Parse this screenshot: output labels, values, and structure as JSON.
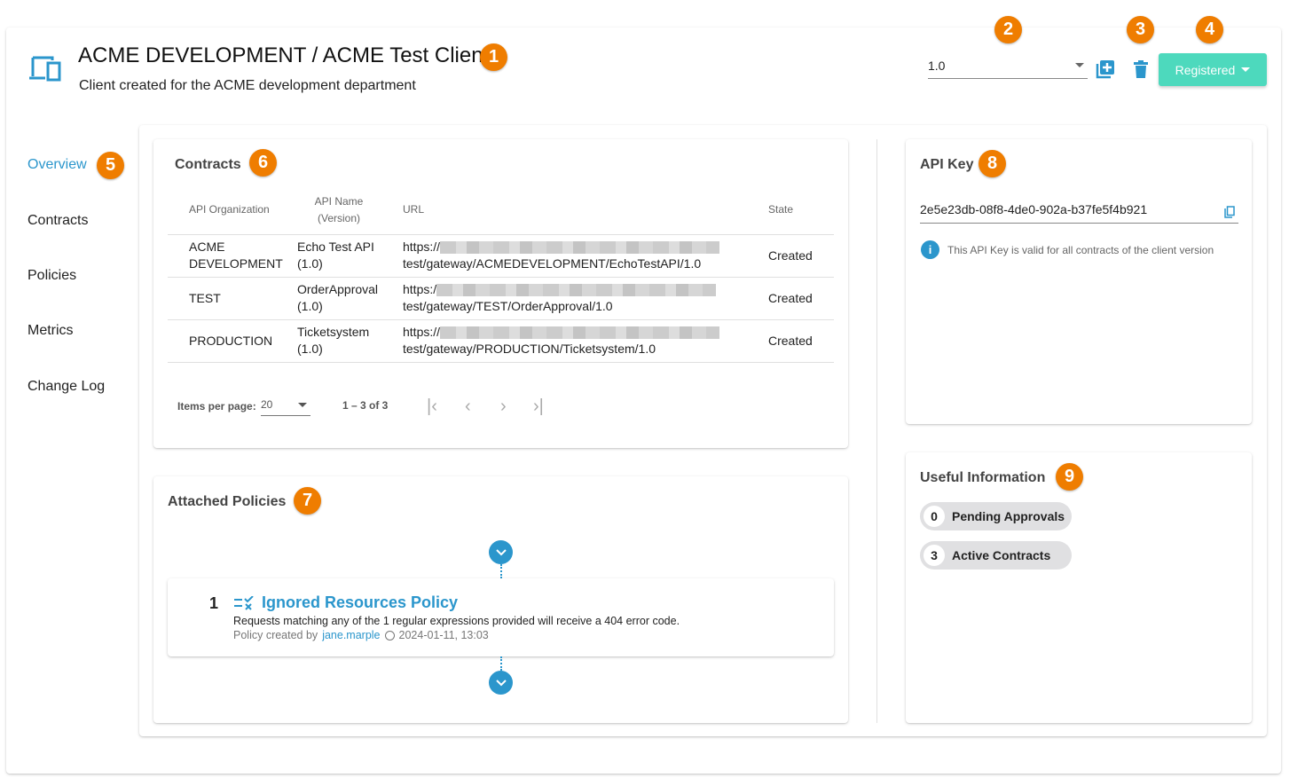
{
  "header": {
    "title": "ACME DEVELOPMENT / ACME Test Client",
    "subtitle": "Client created for the ACME development department",
    "version": "1.0",
    "status_button": "Registered"
  },
  "annotations": [
    "1",
    "2",
    "3",
    "4",
    "5",
    "6",
    "7",
    "8",
    "9"
  ],
  "sidebar": {
    "items": [
      {
        "label": "Overview",
        "active": true
      },
      {
        "label": "Contracts"
      },
      {
        "label": "Policies"
      },
      {
        "label": "Metrics"
      },
      {
        "label": "Change Log"
      }
    ]
  },
  "contracts": {
    "title": "Contracts",
    "columns": [
      "API Organization",
      "API Name (Version)",
      "URL",
      "State"
    ],
    "rows": [
      {
        "org": "ACME DEVELOPMENT",
        "api": "Echo Test API (1.0)",
        "url_prefix": "https://",
        "url_suffix": "test/gateway/ACMEDEVELOPMENT/EchoTestAPI/1.0",
        "state": "Created"
      },
      {
        "org": "TEST",
        "api": "OrderApproval (1.0)",
        "url_prefix": "https:/",
        "url_suffix": "test/gateway/TEST/OrderApproval/1.0",
        "state": "Created"
      },
      {
        "org": "PRODUCTION",
        "api": "Ticketsystem (1.0)",
        "url_prefix": "https://",
        "url_suffix": "test/gateway/PRODUCTION/Ticketsystem/1.0",
        "state": "Created"
      }
    ],
    "paginator": {
      "items_per_page_label": "Items per page:",
      "items_per_page": "20",
      "range": "1 – 3 of 3"
    }
  },
  "policies": {
    "title": "Attached Policies",
    "items": [
      {
        "index": "1",
        "name": "Ignored Resources Policy",
        "description": "Requests matching any of the 1 regular expressions provided will receive a 404 error code.",
        "created_by_label": "Policy created by",
        "author": "jane.marple",
        "timestamp": "2024-01-11, 13:03"
      }
    ]
  },
  "api_key": {
    "title": "API Key",
    "value": "2e5e23db-08f8-4de0-902a-b37fe5f4b921",
    "info": "This API Key is valid for all contracts of the client version"
  },
  "useful_info": {
    "title": "Useful Information",
    "chips": [
      {
        "count": "0",
        "label": "Pending Approvals"
      },
      {
        "count": "3",
        "label": "Active Contracts"
      }
    ]
  },
  "colors": {
    "accent": "#2b96cc",
    "status_button": "#4dd9bd",
    "badge": "#ef7d00"
  }
}
